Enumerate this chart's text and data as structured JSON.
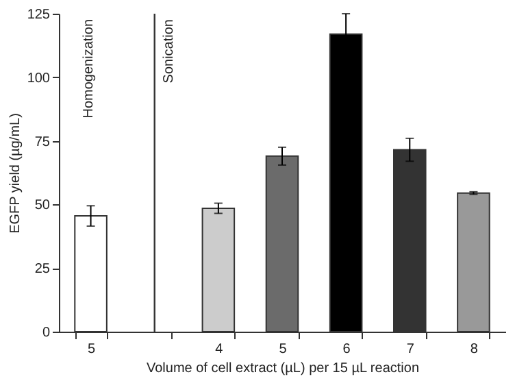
{
  "chart_data": {
    "type": "bar",
    "xlabel": "Volume of cell extract (µL) per 15 µL reaction",
    "ylabel": "EGFP yield (µg/mL)",
    "categories": [
      "5",
      null,
      "4",
      "5",
      "6",
      "7",
      "8"
    ],
    "values": [
      45.5,
      null,
      48.5,
      69,
      117,
      71.5,
      54.5
    ],
    "errors": [
      4,
      null,
      2,
      3.5,
      8,
      4.5,
      0.5
    ],
    "colors": [
      "#ffffff",
      "#ffffff",
      "#cccccc",
      "#6b6b6b",
      "#000000",
      "#333333",
      "#999999"
    ],
    "ylim": [
      0,
      125
    ],
    "yticks": [
      0,
      25,
      50,
      75,
      100,
      125
    ],
    "ref_lines": [
      {
        "axis": "x",
        "value": null,
        "color": "#333333"
      }
    ],
    "annotations": [
      "Homogenization",
      "Sonication"
    ]
  }
}
